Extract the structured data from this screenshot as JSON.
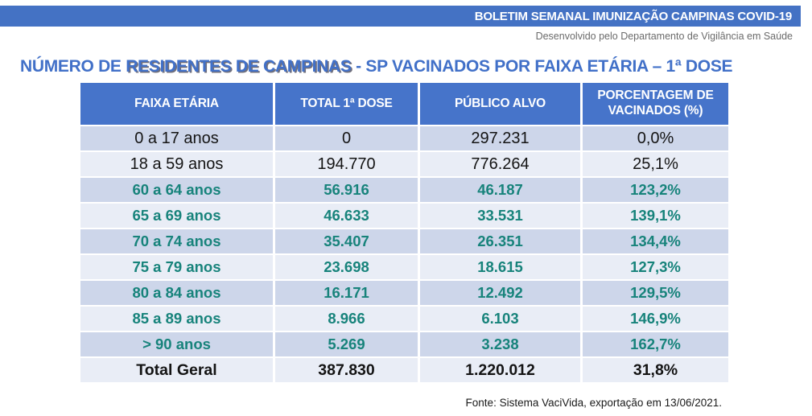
{
  "banner": {
    "title": "BOLETIM SEMANAL IMUNIZAÇÃO CAMPINAS COVID-19",
    "subtitle": "Desenvolvido pelo Departamento de Vigilância em Saúde"
  },
  "page_title": {
    "prefix": "NÚMERO DE ",
    "highlight": "RESIDENTES DE CAMPINAS",
    "suffix": " - SP VACINADOS POR FAIXA ETÁRIA – 1ª DOSE"
  },
  "table": {
    "headers": [
      "FAIXA ETÁRIA",
      "TOTAL 1ª DOSE",
      "PÚBLICO ALVO",
      "PORCENTAGEM DE VACINADOS (%)"
    ],
    "rows": [
      {
        "faixa": "0 a 17 anos",
        "dose": "0",
        "publico": "297.231",
        "pct": "0,0%"
      },
      {
        "faixa": "18 a 59 anos",
        "dose": "194.770",
        "publico": "776.264",
        "pct": "25,1%"
      },
      {
        "faixa": "60 a 64 anos",
        "dose": "56.916",
        "publico": "46.187",
        "pct": "123,2%"
      },
      {
        "faixa": "65 a 69 anos",
        "dose": "46.633",
        "publico": "33.531",
        "pct": "139,1%"
      },
      {
        "faixa": "70 a 74 anos",
        "dose": "35.407",
        "publico": "26.351",
        "pct": "134,4%"
      },
      {
        "faixa": "75 a 79 anos",
        "dose": "23.698",
        "publico": "18.615",
        "pct": "127,3%"
      },
      {
        "faixa": "80 a 84 anos",
        "dose": "16.171",
        "publico": "12.492",
        "pct": "129,5%"
      },
      {
        "faixa": "85 a 89 anos",
        "dose": "8.966",
        "publico": "6.103",
        "pct": "146,9%"
      },
      {
        "faixa": "> 90 anos",
        "dose": "5.269",
        "publico": "3.238",
        "pct": "162,7%"
      },
      {
        "faixa": "Total Geral",
        "dose": "387.830",
        "publico": "1.220.012",
        "pct": "31,8%"
      }
    ]
  },
  "footer": {
    "source": "Fonte: Sistema VaciVida, exportação em 13/06/2021."
  },
  "colors": {
    "banner_blue": "#4472C4",
    "header_blue": "#4674CA",
    "title_blue": "#4170C8",
    "row_dark": "#CDD6EA",
    "row_light": "#E9EDF6",
    "teal": "#17837B",
    "subtitle_gray": "#6B6B6B"
  },
  "chart_data": {
    "type": "table",
    "title": "NÚMERO DE RESIDENTES DE CAMPINAS - SP VACINADOS POR FAIXA ETÁRIA – 1ª DOSE",
    "columns": [
      "FAIXA ETÁRIA",
      "TOTAL 1ª DOSE",
      "PÚBLICO ALVO",
      "PORCENTAGEM DE VACINADOS (%)"
    ],
    "rows": [
      [
        "0 a 17 anos",
        0,
        297231,
        "0,0%"
      ],
      [
        "18 a 59 anos",
        194770,
        776264,
        "25,1%"
      ],
      [
        "60 a 64 anos",
        56916,
        46187,
        "123,2%"
      ],
      [
        "65 a 69 anos",
        46633,
        33531,
        "139,1%"
      ],
      [
        "70 a 74 anos",
        35407,
        26351,
        "134,4%"
      ],
      [
        "75 a 79 anos",
        23698,
        18615,
        "127,3%"
      ],
      [
        "80 a 84 anos",
        16171,
        12492,
        "129,5%"
      ],
      [
        "85 a 89 anos",
        8966,
        6103,
        "146,9%"
      ],
      [
        "> 90 anos",
        5269,
        3238,
        "162,7%"
      ],
      [
        "Total Geral",
        387830,
        1220012,
        "31,8%"
      ]
    ]
  }
}
